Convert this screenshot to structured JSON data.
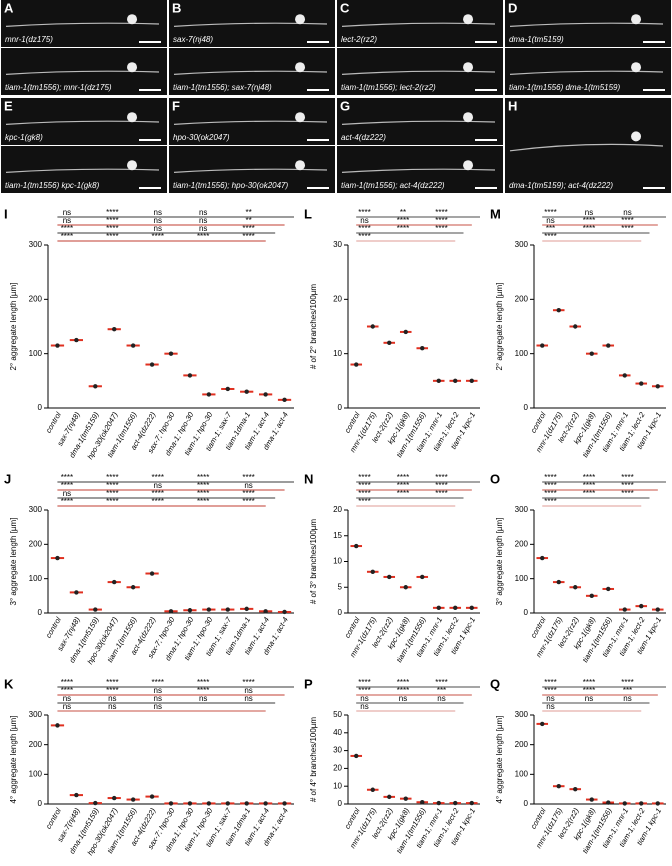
{
  "images": [
    {
      "letter": "A",
      "panels": [
        "mnr-1(dz175)",
        "tiam-1(tm1556); mnr-1(dz175)"
      ]
    },
    {
      "letter": "B",
      "panels": [
        "sax-7(nj48)",
        "tiam-1(tm1556); sax-7(nj48)"
      ]
    },
    {
      "letter": "C",
      "panels": [
        "lect-2(rz2)",
        "tiam-1(tm1556); lect-2(rz2)"
      ]
    },
    {
      "letter": "D",
      "panels": [
        "dma-1(tm5159)",
        "tiam-1(tm1556) dma-1(tm5159)"
      ]
    },
    {
      "letter": "E",
      "panels": [
        "kpc-1(gk8)",
        "tiam-1(tm1556) kpc-1(gk8)"
      ]
    },
    {
      "letter": "F",
      "panels": [
        "hpo-30(ok2047)",
        "tiam-1(tm1556); hpo-30(ok2047)"
      ]
    },
    {
      "letter": "G",
      "panels": [
        "act-4(dz222)",
        "tiam-1(tm1556); act-4(dz222)"
      ]
    },
    {
      "letter": "H",
      "panels": [
        "dma-1(tm5159); act-4(dz222)"
      ]
    }
  ],
  "chart_data": [
    {
      "type": "strip",
      "letter": "I",
      "y_label": "2° aggregate length [µm]",
      "ylim": [
        0,
        300
      ],
      "yticks": [
        0,
        100,
        200,
        300
      ],
      "color": "#e03020",
      "categories": [
        "control",
        "sax-7(nj48)",
        "dma-1(tm5159)",
        "hpo-30(ok2047)",
        "tiam-1(tm1556)",
        "act-4(dz222)",
        "sax-7; hpo-30",
        "dma-1; hpo-30",
        "tiam-1; hpo-30",
        "tiam-1; sax-7",
        "tiam-1dma-1",
        "tiam-1; act-4",
        "dma-1; act-4"
      ],
      "values": [
        115,
        125,
        40,
        145,
        115,
        80,
        100,
        60,
        25,
        35,
        30,
        25,
        15
      ],
      "significance": [
        "ns",
        "****",
        "ns",
        "ns",
        "**",
        "ns",
        "****",
        "ns",
        "ns",
        "**",
        "****",
        "****",
        "ns",
        "ns",
        "****",
        "****",
        "****",
        "****",
        "****",
        "****"
      ]
    },
    {
      "type": "strip",
      "letter": "J",
      "y_label": "3° aggregate length [µm]",
      "ylim": [
        0,
        300
      ],
      "yticks": [
        0,
        100,
        200,
        300
      ],
      "color": "#e03020",
      "categories": [
        "control",
        "sax-7(nj48)",
        "dma-1(tm5159)",
        "hpo-30(ok2047)",
        "tiam-1(tm1556)",
        "act-4(dz222)",
        "sax-7; hpo-30",
        "dma-1; hpo-30",
        "tiam-1; hpo-30",
        "tiam-1; sax-7",
        "tiam-1dma-1",
        "tiam-1; act-4",
        "dma-1; act-4"
      ],
      "values": [
        160,
        60,
        10,
        90,
        75,
        115,
        5,
        8,
        10,
        10,
        12,
        5,
        3
      ],
      "significance": [
        "****",
        "****",
        "****",
        "****",
        "****",
        "****",
        "****",
        "ns",
        "****",
        "ns",
        "ns",
        "****",
        "****",
        "****",
        "****",
        "****",
        "****",
        "****",
        "****",
        "****"
      ]
    },
    {
      "type": "strip",
      "letter": "K",
      "y_label": "4° aggregate length [µm]",
      "ylim": [
        0,
        300
      ],
      "yticks": [
        0,
        100,
        200,
        300
      ],
      "color": "#e03020",
      "categories": [
        "control",
        "sax-7(nj48)",
        "dma-1(tm5159)",
        "hpo-30(ok2047)",
        "tiam-1(tm1556)",
        "act-4(dz222)",
        "sax-7; hpo-30",
        "dma-1; hpo-30",
        "tiam-1; hpo-30",
        "tiam-1; sax-7",
        "tiam-1dma-1",
        "tiam-1; act-4",
        "dma-1; act-4"
      ],
      "values": [
        265,
        30,
        3,
        20,
        15,
        25,
        2,
        2,
        2,
        2,
        2,
        2,
        2
      ],
      "significance": [
        "****",
        "****",
        "****",
        "****",
        "****",
        "****",
        "****",
        "ns",
        "****",
        "ns",
        "ns",
        "ns",
        "ns",
        "ns",
        "ns",
        "ns",
        "ns",
        "ns"
      ]
    },
    {
      "type": "strip",
      "letter": "L",
      "y_label": "# of 2° branches/100µm",
      "ylim": [
        0,
        30
      ],
      "yticks": [
        0,
        10,
        20,
        30
      ],
      "color": "#e03020",
      "categories": [
        "control",
        "mnr-1(dz175)",
        "lect-2(rz2)",
        "kpc-1(gk8)",
        "tiam-1(tm1556)",
        "tiam-1; mnr-1",
        "tiam-1; lect-2",
        "tiam-1 kpc-1"
      ],
      "values": [
        8,
        15,
        12,
        14,
        11,
        5,
        5,
        5
      ],
      "significance": [
        "****",
        "**",
        "****",
        "ns",
        "****",
        "****",
        "****",
        "****",
        "****",
        "****"
      ]
    },
    {
      "type": "strip",
      "letter": "M",
      "y_label": "2° aggregate length [µm]",
      "ylim": [
        0,
        300
      ],
      "yticks": [
        0,
        100,
        200,
        300
      ],
      "color": "#e03020",
      "categories": [
        "control",
        "mnr-1(dz175)",
        "lect-2(rz2)",
        "kpc-1(gk8)",
        "tiam-1(tm1556)",
        "tiam-1; mnr-1",
        "tiam-1; lect-2",
        "tiam-1 kpc-1"
      ],
      "values": [
        115,
        180,
        150,
        100,
        115,
        60,
        45,
        40
      ],
      "significance": [
        "****",
        "ns",
        "ns",
        "ns",
        "****",
        "****",
        "***",
        "****",
        "****",
        "****"
      ]
    },
    {
      "type": "strip",
      "letter": "N",
      "y_label": "# of 3° branches/100µm",
      "ylim": [
        0,
        20
      ],
      "yticks": [
        0,
        5,
        10,
        15,
        20
      ],
      "color": "#e03020",
      "categories": [
        "control",
        "mnr-1(dz175)",
        "lect-2(rz2)",
        "kpc-1(gk8)",
        "tiam-1(tm1556)",
        "tiam-1; mnr-1",
        "tiam-1; lect-2",
        "tiam-1 kpc-1"
      ],
      "values": [
        13,
        8,
        7,
        5,
        7,
        1,
        1,
        1
      ],
      "significance": [
        "****",
        "****",
        "****",
        "****",
        "****",
        "****",
        "****",
        "****",
        "****",
        "****"
      ]
    },
    {
      "type": "strip",
      "letter": "O",
      "y_label": "3° aggregate length [µm]",
      "ylim": [
        0,
        300
      ],
      "yticks": [
        0,
        100,
        200,
        300
      ],
      "color": "#e03020",
      "categories": [
        "control",
        "mnr-1(dz175)",
        "lect-2(rz2)",
        "kpc-1(gk8)",
        "tiam-1(tm1556)",
        "tiam-1; mnr-1",
        "tiam-1; lect-2",
        "tiam-1 kpc-1"
      ],
      "values": [
        160,
        90,
        75,
        50,
        70,
        10,
        20,
        10
      ],
      "significance": [
        "****",
        "****",
        "****",
        "****",
        "****",
        "****",
        "****",
        "****",
        "****",
        "****"
      ]
    },
    {
      "type": "strip",
      "letter": "P",
      "y_label": "# of 4° branches/100µm",
      "ylim": [
        0,
        50
      ],
      "yticks": [
        0,
        10,
        20,
        30,
        40,
        50
      ],
      "color": "#e03020",
      "categories": [
        "control",
        "mnr-1(dz175)",
        "lect-2(rz2)",
        "kpc-1(gk8)",
        "tiam-1(tm1556)",
        "tiam-1; mnr-1",
        "tiam-1; lect-2",
        "tiam-1 kpc-1"
      ],
      "values": [
        27,
        8,
        4,
        3,
        1,
        0.5,
        0.5,
        0.5
      ],
      "significance": [
        "****",
        "****",
        "****",
        "****",
        "****",
        "***",
        "ns",
        "ns",
        "ns",
        "ns"
      ]
    },
    {
      "type": "strip",
      "letter": "Q",
      "y_label": "4° aggregate length [µm]",
      "ylim": [
        0,
        300
      ],
      "yticks": [
        0,
        100,
        200,
        300
      ],
      "color": "#e03020",
      "categories": [
        "control",
        "mnr-1(dz175)",
        "lect-2(rz2)",
        "kpc-1(gk8)",
        "tiam-1(tm1556)",
        "tiam-1; mnr-1",
        "tiam-1; lect-2",
        "tiam-1 kpc-1"
      ],
      "values": [
        270,
        60,
        50,
        15,
        5,
        2,
        2,
        2
      ],
      "significance": [
        "****",
        "****",
        "****",
        "****",
        "****",
        "***",
        "ns",
        "ns",
        "ns",
        "ns"
      ]
    }
  ]
}
